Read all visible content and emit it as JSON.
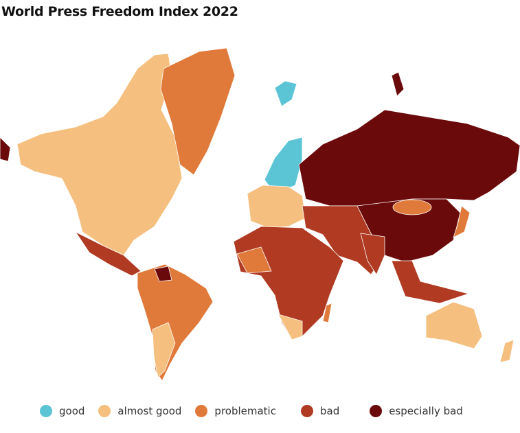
{
  "title": "World Press Freedom Index 2022",
  "legend": [
    {
      "label": "good",
      "color": "#5bc5d6"
    },
    {
      "label": "almost good",
      "color": "#f5c07f"
    },
    {
      "label": "problematic",
      "color": "#e07a3a"
    },
    {
      "label": "bad",
      "color": "#b03a22"
    },
    {
      "label": "especially bad",
      "color": "#6b0a0a"
    }
  ]
}
